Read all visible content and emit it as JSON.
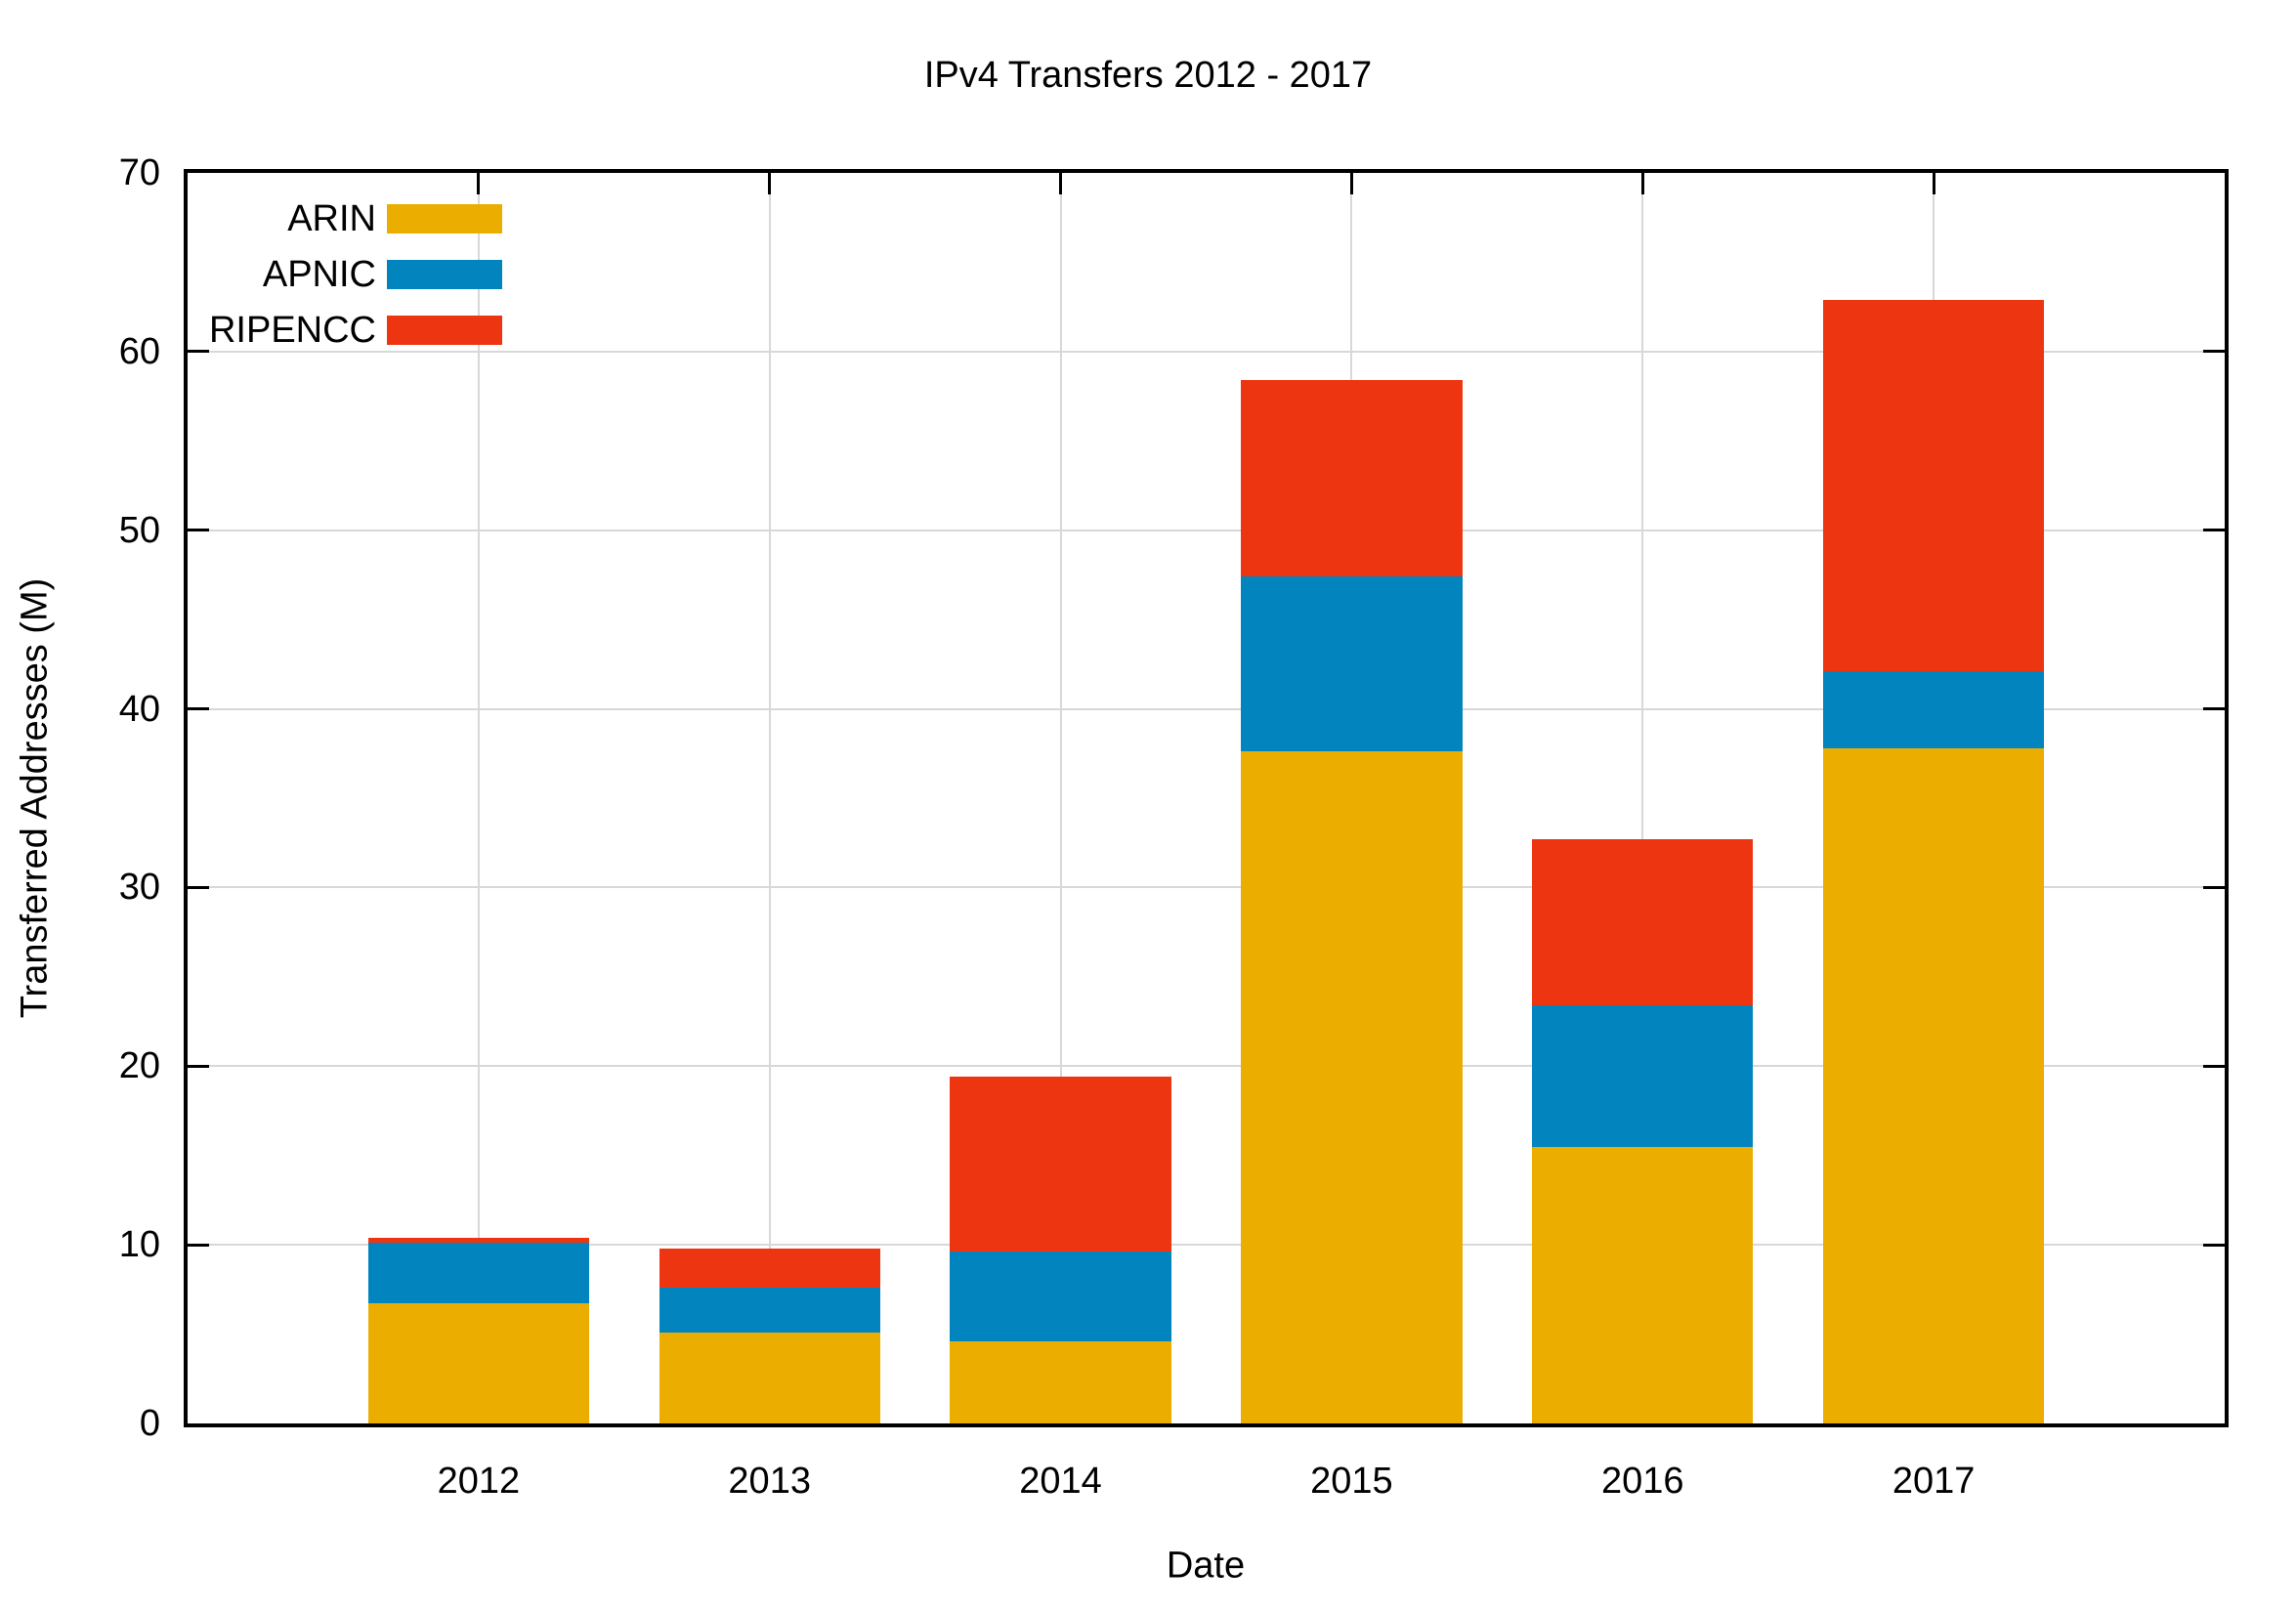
{
  "chart_data": {
    "type": "bar",
    "stacked": true,
    "title": "IPv4 Transfers 2012 - 2017",
    "xlabel": "Date",
    "ylabel": "Transferred Addresses (M)",
    "categories": [
      "2012",
      "2013",
      "2014",
      "2015",
      "2016",
      "2017"
    ],
    "series": [
      {
        "name": "ARIN",
        "color": "#EBAE00",
        "values": [
          6.7,
          5.1,
          4.6,
          37.6,
          15.5,
          37.8
        ]
      },
      {
        "name": "APNIC",
        "color": "#0284BE",
        "values": [
          3.4,
          2.5,
          5.0,
          9.8,
          7.9,
          4.3
        ]
      },
      {
        "name": "RIPENCC",
        "color": "#ED3611",
        "values": [
          0.3,
          2.2,
          9.8,
          11.0,
          9.3,
          20.8
        ]
      }
    ],
    "totals": [
      10.4,
      9.8,
      19.4,
      58.4,
      32.7,
      62.9
    ],
    "ylim": [
      0,
      70
    ],
    "ytick_step": 10,
    "grid": true,
    "legend_position": "top-left",
    "bar_width_frac": 0.76
  },
  "colors": {
    "grid": "#D8D8D8",
    "axis": "#000000",
    "background": "#FFFFFF"
  }
}
